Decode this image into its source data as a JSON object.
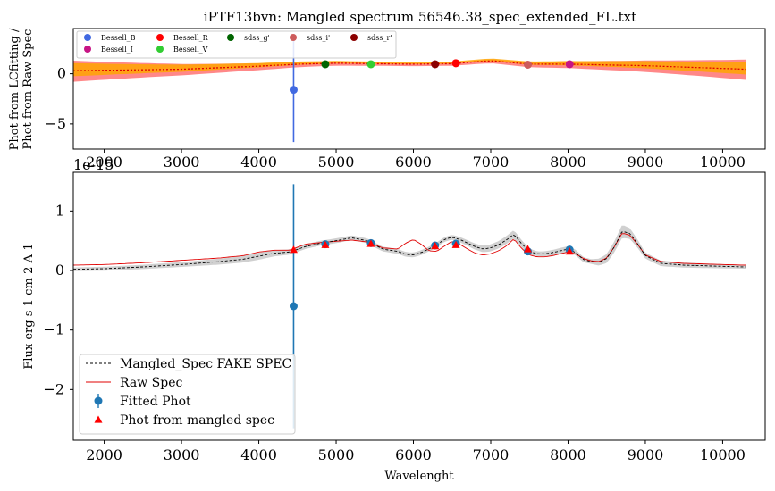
{
  "chart_data": [
    {
      "panel": "top",
      "type": "scatter",
      "title": "iPTF13bvn: Mangled spectrum 56546.38_spec_extended_FL.txt",
      "ylabel_line1": "Phot from LCfitting /",
      "ylabel_line2": "Phot from Raw Spec",
      "xlim": [
        1600,
        10550
      ],
      "ylim": [
        -7.5,
        4.5
      ],
      "x_ticks": [
        2000,
        3000,
        4000,
        5000,
        6000,
        7000,
        8000,
        9000,
        10000
      ],
      "y_ticks": [
        0,
        -5
      ],
      "offset_text": "1e-15",
      "legend": [
        {
          "label": "Bessell_B",
          "color": "#4169e1"
        },
        {
          "label": "Bessell_R",
          "color": "#ff0000"
        },
        {
          "label": "sdss_g'",
          "color": "#006400"
        },
        {
          "label": "sdss_i'",
          "color": "#cd5c5c"
        },
        {
          "label": "sdss_r'",
          "color": "#8b0000"
        },
        {
          "label": "Bessell_I",
          "color": "#c71585"
        },
        {
          "label": "Bessell_V",
          "color": "#32cd32"
        }
      ],
      "points": [
        {
          "x": 4450,
          "y": -1.6,
          "err": 5.2,
          "color": "#4169e1"
        },
        {
          "x": 4860,
          "y": 0.95,
          "color": "#006400"
        },
        {
          "x": 5450,
          "y": 0.95,
          "color": "#32cd32"
        },
        {
          "x": 6280,
          "y": 0.95,
          "color": "#8b0000"
        },
        {
          "x": 6550,
          "y": 1.05,
          "color": "#ff0000"
        },
        {
          "x": 7480,
          "y": 0.9,
          "color": "#cd5c5c"
        },
        {
          "x": 8020,
          "y": 0.95,
          "color": "#c71585"
        }
      ],
      "ratio_curve": {
        "x": [
          1600,
          3000,
          4000,
          4500,
          5000,
          5500,
          6000,
          6500,
          7000,
          7500,
          8000,
          9000,
          10300
        ],
        "y": [
          0.3,
          0.45,
          0.75,
          0.95,
          1.05,
          1.0,
          0.95,
          1.0,
          1.3,
          0.95,
          0.95,
          0.8,
          0.45
        ]
      }
    },
    {
      "panel": "bottom",
      "type": "line",
      "xlabel": "Wavelenght",
      "ylabel": "Flux erg s-1 cm-2 A-1",
      "xlim": [
        1600,
        10550
      ],
      "ylim": [
        -2.85,
        1.65
      ],
      "x_ticks": [
        2000,
        3000,
        4000,
        5000,
        6000,
        7000,
        8000,
        9000,
        10000
      ],
      "y_ticks": [
        1,
        0,
        -1,
        -2
      ],
      "legend": [
        {
          "label": "Mangled_Spec FAKE SPEC",
          "style": "dashed"
        },
        {
          "label": "Raw Spec",
          "style": "red-line"
        },
        {
          "label": "Fitted Phot",
          "style": "errorbar"
        },
        {
          "label": "Phot from mangled spec",
          "style": "triangle"
        }
      ],
      "mangled_spec": {
        "x": [
          1600,
          2000,
          2500,
          3000,
          3500,
          3800,
          4000,
          4200,
          4400,
          4600,
          4800,
          5000,
          5200,
          5400,
          5600,
          5800,
          5900,
          6000,
          6100,
          6200,
          6300,
          6400,
          6500,
          6600,
          6700,
          6800,
          6900,
          7000,
          7100,
          7200,
          7300,
          7400,
          7500,
          7600,
          7700,
          7800,
          7900,
          8000,
          8100,
          8200,
          8300,
          8400,
          8500,
          8600,
          8700,
          8800,
          8900,
          9000,
          9200,
          9500,
          10000,
          10300
        ],
        "y": [
          0.02,
          0.03,
          0.06,
          0.1,
          0.15,
          0.19,
          0.24,
          0.29,
          0.31,
          0.4,
          0.46,
          0.5,
          0.55,
          0.5,
          0.36,
          0.32,
          0.27,
          0.26,
          0.3,
          0.36,
          0.43,
          0.52,
          0.56,
          0.52,
          0.46,
          0.4,
          0.36,
          0.38,
          0.43,
          0.51,
          0.61,
          0.45,
          0.32,
          0.28,
          0.28,
          0.3,
          0.33,
          0.36,
          0.3,
          0.18,
          0.15,
          0.14,
          0.2,
          0.4,
          0.66,
          0.62,
          0.45,
          0.25,
          0.12,
          0.09,
          0.07,
          0.06
        ]
      },
      "band": {
        "x": [
          1600,
          3000,
          4000,
          4500,
          5200,
          6500,
          7300,
          7600,
          8000,
          8300,
          8700,
          9000,
          10300
        ],
        "half_width": [
          0.03,
          0.04,
          0.06,
          0.04,
          0.04,
          0.04,
          0.07,
          0.04,
          0.05,
          0.04,
          0.11,
          0.05,
          0.03
        ]
      },
      "raw_spec": {
        "x": [
          1600,
          2000,
          2500,
          3000,
          3500,
          3800,
          4000,
          4200,
          4400,
          4600,
          4800,
          5000,
          5200,
          5400,
          5600,
          5800,
          5900,
          6000,
          6100,
          6200,
          6300,
          6400,
          6500,
          6600,
          6700,
          6800,
          6900,
          7000,
          7100,
          7200,
          7300,
          7400,
          7500,
          7600,
          7700,
          7800,
          7900,
          8000,
          8100,
          8200,
          8300,
          8400,
          8500,
          8600,
          8700,
          8800,
          8900,
          9000,
          9200,
          9500,
          10000,
          10300
        ],
        "y": [
          0.09,
          0.1,
          0.13,
          0.17,
          0.21,
          0.25,
          0.31,
          0.34,
          0.34,
          0.44,
          0.47,
          0.49,
          0.51,
          0.48,
          0.38,
          0.36,
          0.46,
          0.52,
          0.44,
          0.33,
          0.32,
          0.41,
          0.49,
          0.44,
          0.36,
          0.29,
          0.26,
          0.28,
          0.33,
          0.41,
          0.53,
          0.37,
          0.26,
          0.23,
          0.23,
          0.25,
          0.28,
          0.31,
          0.28,
          0.2,
          0.16,
          0.15,
          0.21,
          0.4,
          0.63,
          0.59,
          0.44,
          0.26,
          0.15,
          0.12,
          0.1,
          0.09
        ]
      },
      "fitted_phot": [
        {
          "x": 4450,
          "y": -0.6,
          "err": 2.05
        },
        {
          "x": 4860,
          "y": 0.44
        },
        {
          "x": 5450,
          "y": 0.46
        },
        {
          "x": 6280,
          "y": 0.42
        },
        {
          "x": 6550,
          "y": 0.45
        },
        {
          "x": 7480,
          "y": 0.32
        },
        {
          "x": 8020,
          "y": 0.35
        }
      ],
      "phot_mangled": [
        {
          "x": 4450,
          "y": 0.35
        },
        {
          "x": 4860,
          "y": 0.43
        },
        {
          "x": 5450,
          "y": 0.45
        },
        {
          "x": 6280,
          "y": 0.41
        },
        {
          "x": 6550,
          "y": 0.43
        },
        {
          "x": 7480,
          "y": 0.36
        },
        {
          "x": 8020,
          "y": 0.32
        }
      ]
    }
  ]
}
